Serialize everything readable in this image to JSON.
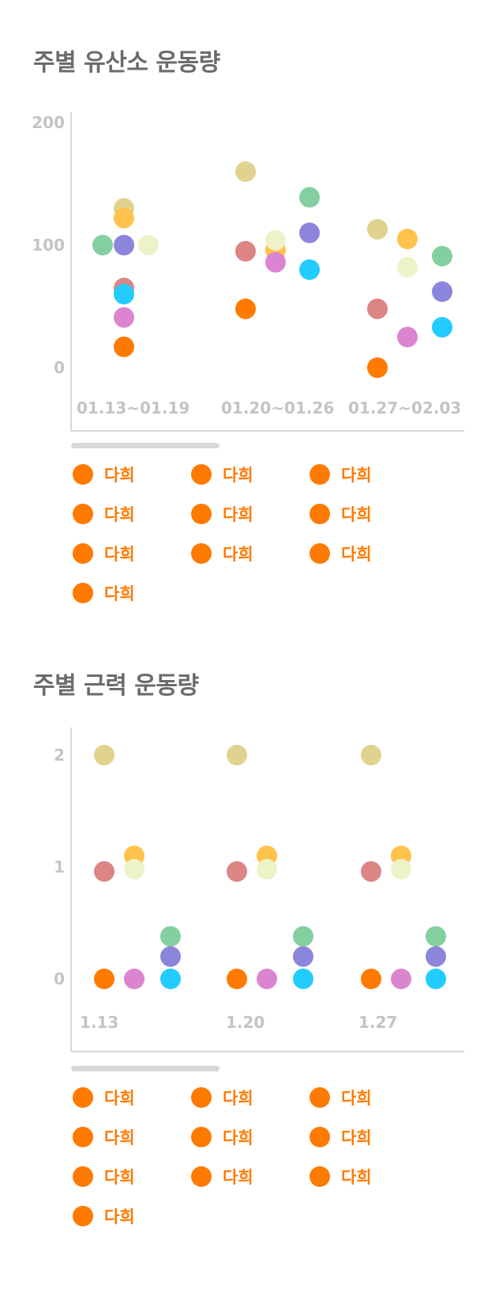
{
  "sections": {
    "aerobic_title": "주별 유산소 운동량",
    "strength_title": "주별 근력 운동량"
  },
  "legend_aerobic": [
    {
      "label": "다희",
      "color": "#FF7A00"
    },
    {
      "label": "다희",
      "color": "#FF7A00"
    },
    {
      "label": "다희",
      "color": "#FF7A00"
    },
    {
      "label": "다희",
      "color": "#FF7A00"
    },
    {
      "label": "다희",
      "color": "#FF7A00"
    },
    {
      "label": "다희",
      "color": "#FF7A00"
    },
    {
      "label": "다희",
      "color": "#FF7A00"
    },
    {
      "label": "다희",
      "color": "#FF7A00"
    },
    {
      "label": "다희",
      "color": "#FF7A00"
    },
    {
      "label": "다희",
      "color": "#FF7A00"
    }
  ],
  "legend_strength": [
    {
      "label": "다희",
      "color": "#FF7A00"
    },
    {
      "label": "다희",
      "color": "#FF7A00"
    },
    {
      "label": "다희",
      "color": "#FF7A00"
    },
    {
      "label": "다희",
      "color": "#FF7A00"
    },
    {
      "label": "다희",
      "color": "#FF7A00"
    },
    {
      "label": "다희",
      "color": "#FF7A00"
    },
    {
      "label": "다희",
      "color": "#FF7A00"
    },
    {
      "label": "다희",
      "color": "#FF7A00"
    },
    {
      "label": "다희",
      "color": "#FF7A00"
    },
    {
      "label": "다희",
      "color": "#FF7A00"
    }
  ],
  "chart_data": [
    {
      "type": "scatter",
      "title": "주별 유산소 운동량",
      "categories": [
        "01.13~01.19",
        "01.20~01.26",
        "01.27~02.03"
      ],
      "yticks": [
        0,
        100,
        200
      ],
      "ylim": [
        -50,
        210
      ],
      "grid": false,
      "legend_position": "bottom",
      "points": [
        {
          "category": 0,
          "y": 130,
          "color": "#E0D38E"
        },
        {
          "category": 0,
          "y": 122,
          "color": "#FFC34D"
        },
        {
          "category": 0,
          "y": 100,
          "color": "#84CFA0"
        },
        {
          "category": 0,
          "y": 100,
          "color": "#8B85DB"
        },
        {
          "category": 0,
          "y": 100,
          "color": "#EEF2C8"
        },
        {
          "category": 0,
          "y": 65,
          "color": "#DB8585"
        },
        {
          "category": 0,
          "y": 60,
          "color": "#22CCFF"
        },
        {
          "category": 0,
          "y": 41,
          "color": "#DB85D0"
        },
        {
          "category": 0,
          "y": 17,
          "color": "#FF7A00"
        },
        {
          "category": 1,
          "y": 160,
          "color": "#E0D38E"
        },
        {
          "category": 1,
          "y": 96,
          "color": "#FFC34D"
        },
        {
          "category": 1,
          "y": 104,
          "color": "#EEF2C8"
        },
        {
          "category": 1,
          "y": 95,
          "color": "#DB8585"
        },
        {
          "category": 1,
          "y": 86,
          "color": "#DB85D0"
        },
        {
          "category": 1,
          "y": 48,
          "color": "#FF7A00"
        },
        {
          "category": 1,
          "y": 139,
          "color": "#84CFA0"
        },
        {
          "category": 1,
          "y": 110,
          "color": "#8B85DB"
        },
        {
          "category": 1,
          "y": 80,
          "color": "#22CCFF"
        },
        {
          "category": 2,
          "y": 113,
          "color": "#E0D38E"
        },
        {
          "category": 2,
          "y": 105,
          "color": "#FFC34D"
        },
        {
          "category": 2,
          "y": 82,
          "color": "#EEF2C8"
        },
        {
          "category": 2,
          "y": 48,
          "color": "#DB8585"
        },
        {
          "category": 2,
          "y": 25,
          "color": "#DB85D0"
        },
        {
          "category": 2,
          "y": 0,
          "color": "#FF7A00"
        },
        {
          "category": 2,
          "y": 91,
          "color": "#84CFA0"
        },
        {
          "category": 2,
          "y": 62,
          "color": "#8B85DB"
        },
        {
          "category": 2,
          "y": 33,
          "color": "#22CCFF"
        }
      ]
    },
    {
      "type": "scatter",
      "title": "주별 근력 운동량",
      "categories": [
        "1.13",
        "1.20",
        "1.27"
      ],
      "yticks": [
        0,
        1,
        2
      ],
      "ylim": [
        -0.55,
        2.25
      ],
      "grid": false,
      "legend_position": "bottom",
      "points": [
        {
          "category": 0,
          "y": 2,
          "color": "#E0D38E"
        },
        {
          "category": 0,
          "y": 0.96,
          "color": "#DB8585"
        },
        {
          "category": 0,
          "y": 1.1,
          "color": "#FFC34D"
        },
        {
          "category": 0,
          "y": 0.98,
          "color": "#EEF2C8"
        },
        {
          "category": 0,
          "y": 0,
          "color": "#FF7A00"
        },
        {
          "category": 0,
          "y": 0,
          "color": "#DB85D0"
        },
        {
          "category": 0,
          "y": 0.38,
          "color": "#84CFA0"
        },
        {
          "category": 0,
          "y": 0.2,
          "color": "#8B85DB"
        },
        {
          "category": 0,
          "y": 0,
          "color": "#22CCFF"
        },
        {
          "category": 1,
          "y": 2,
          "color": "#E0D38E"
        },
        {
          "category": 1,
          "y": 0.96,
          "color": "#DB8585"
        },
        {
          "category": 1,
          "y": 1.1,
          "color": "#FFC34D"
        },
        {
          "category": 1,
          "y": 0.98,
          "color": "#EEF2C8"
        },
        {
          "category": 1,
          "y": 0,
          "color": "#FF7A00"
        },
        {
          "category": 1,
          "y": 0,
          "color": "#DB85D0"
        },
        {
          "category": 1,
          "y": 0.38,
          "color": "#84CFA0"
        },
        {
          "category": 1,
          "y": 0.2,
          "color": "#8B85DB"
        },
        {
          "category": 1,
          "y": 0,
          "color": "#22CCFF"
        },
        {
          "category": 2,
          "y": 2,
          "color": "#E0D38E"
        },
        {
          "category": 2,
          "y": 0.96,
          "color": "#DB8585"
        },
        {
          "category": 2,
          "y": 1.1,
          "color": "#FFC34D"
        },
        {
          "category": 2,
          "y": 0.98,
          "color": "#EEF2C8"
        },
        {
          "category": 2,
          "y": 0,
          "color": "#FF7A00"
        },
        {
          "category": 2,
          "y": 0,
          "color": "#DB85D0"
        },
        {
          "category": 2,
          "y": 0.38,
          "color": "#84CFA0"
        },
        {
          "category": 2,
          "y": 0.2,
          "color": "#8B85DB"
        },
        {
          "category": 2,
          "y": 0,
          "color": "#22CCFF"
        }
      ]
    }
  ]
}
